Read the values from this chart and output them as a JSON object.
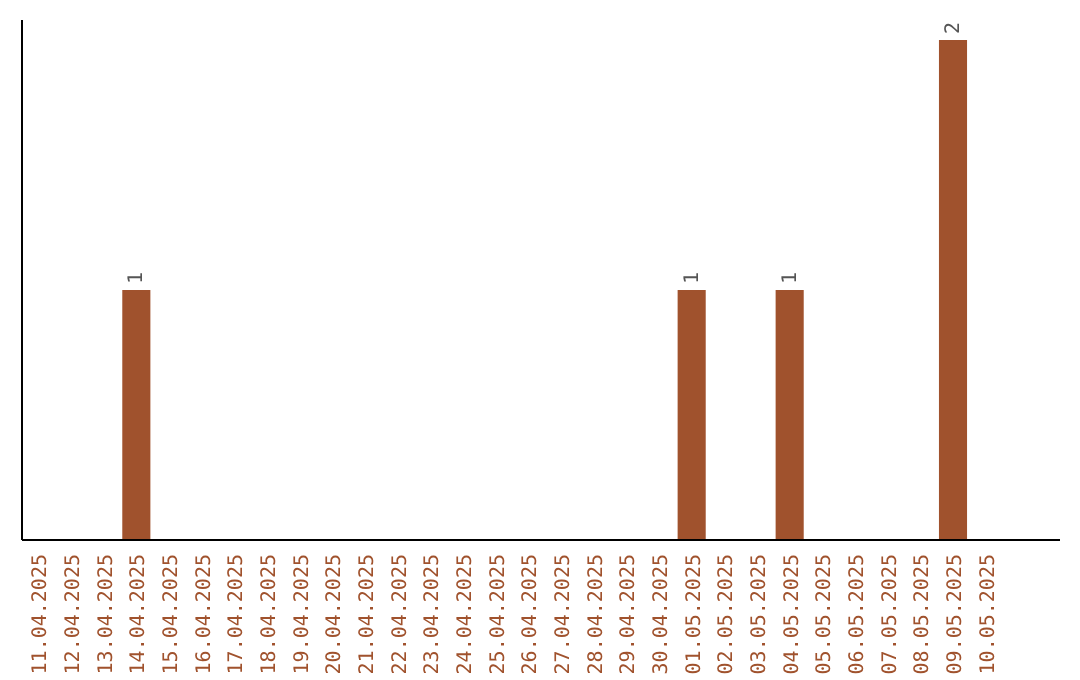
{
  "chart_data": {
    "type": "bar",
    "categories": [
      "11.04.2025",
      "12.04.2025",
      "13.04.2025",
      "14.04.2025",
      "15.04.2025",
      "16.04.2025",
      "17.04.2025",
      "18.04.2025",
      "19.04.2025",
      "20.04.2025",
      "21.04.2025",
      "22.04.2025",
      "23.04.2025",
      "24.04.2025",
      "25.04.2025",
      "26.04.2025",
      "27.04.2025",
      "28.04.2025",
      "29.04.2025",
      "30.04.2025",
      "01.05.2025",
      "02.05.2025",
      "03.05.2025",
      "04.05.2025",
      "05.05.2025",
      "06.05.2025",
      "07.05.2025",
      "08.05.2025",
      "09.05.2025",
      "10.05.2025"
    ],
    "values": [
      0,
      0,
      0,
      1,
      0,
      0,
      0,
      0,
      0,
      0,
      0,
      0,
      0,
      0,
      0,
      0,
      0,
      0,
      0,
      0,
      1,
      0,
      0,
      1,
      0,
      0,
      0,
      0,
      2,
      0
    ],
    "value_labels": [
      null,
      null,
      null,
      "1",
      null,
      null,
      null,
      null,
      null,
      null,
      null,
      null,
      null,
      null,
      null,
      null,
      null,
      null,
      null,
      null,
      "1",
      null,
      null,
      "1",
      null,
      null,
      null,
      null,
      "2",
      null
    ],
    "color": "#a0522d",
    "ylim": [
      0,
      2.08
    ],
    "tick_labels": "x"
  }
}
